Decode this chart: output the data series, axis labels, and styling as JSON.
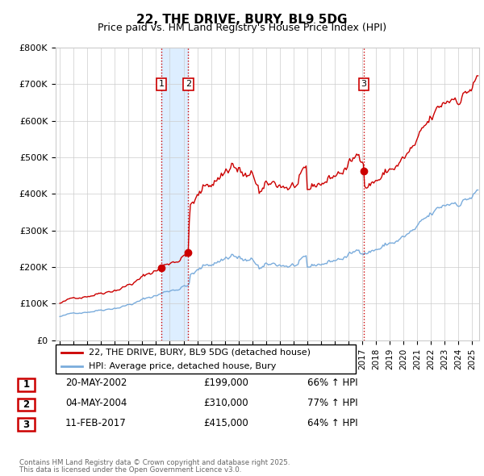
{
  "title": "22, THE DRIVE, BURY, BL9 5DG",
  "subtitle": "Price paid vs. HM Land Registry's House Price Index (HPI)",
  "title_fontsize": 11,
  "subtitle_fontsize": 9,
  "ylabel_ticks": [
    "£0",
    "£100K",
    "£200K",
    "£300K",
    "£400K",
    "£500K",
    "£600K",
    "£700K",
    "£800K"
  ],
  "ylim": [
    0,
    800000
  ],
  "xlim_start": 1994.7,
  "xlim_end": 2025.5,
  "sale_color": "#cc0000",
  "hpi_color": "#7aacdc",
  "vline_color": "#cc0000",
  "vline_style": ":",
  "shade_color": "#ddeeff",
  "transactions": [
    {
      "num": 1,
      "date_str": "20-MAY-2002",
      "date_x": 2002.38,
      "price": 199000,
      "pct": "66%",
      "dir": "↑"
    },
    {
      "num": 2,
      "date_str": "04-MAY-2004",
      "date_x": 2004.34,
      "price": 310000,
      "pct": "77%",
      "dir": "↑"
    },
    {
      "num": 3,
      "date_str": "11-FEB-2017",
      "date_x": 2017.11,
      "price": 415000,
      "pct": "64%",
      "dir": "↑"
    }
  ],
  "legend_label_sale": "22, THE DRIVE, BURY, BL9 5DG (detached house)",
  "legend_label_hpi": "HPI: Average price, detached house, Bury",
  "footer_line1": "Contains HM Land Registry data © Crown copyright and database right 2025.",
  "footer_line2": "This data is licensed under the Open Government Licence v3.0."
}
